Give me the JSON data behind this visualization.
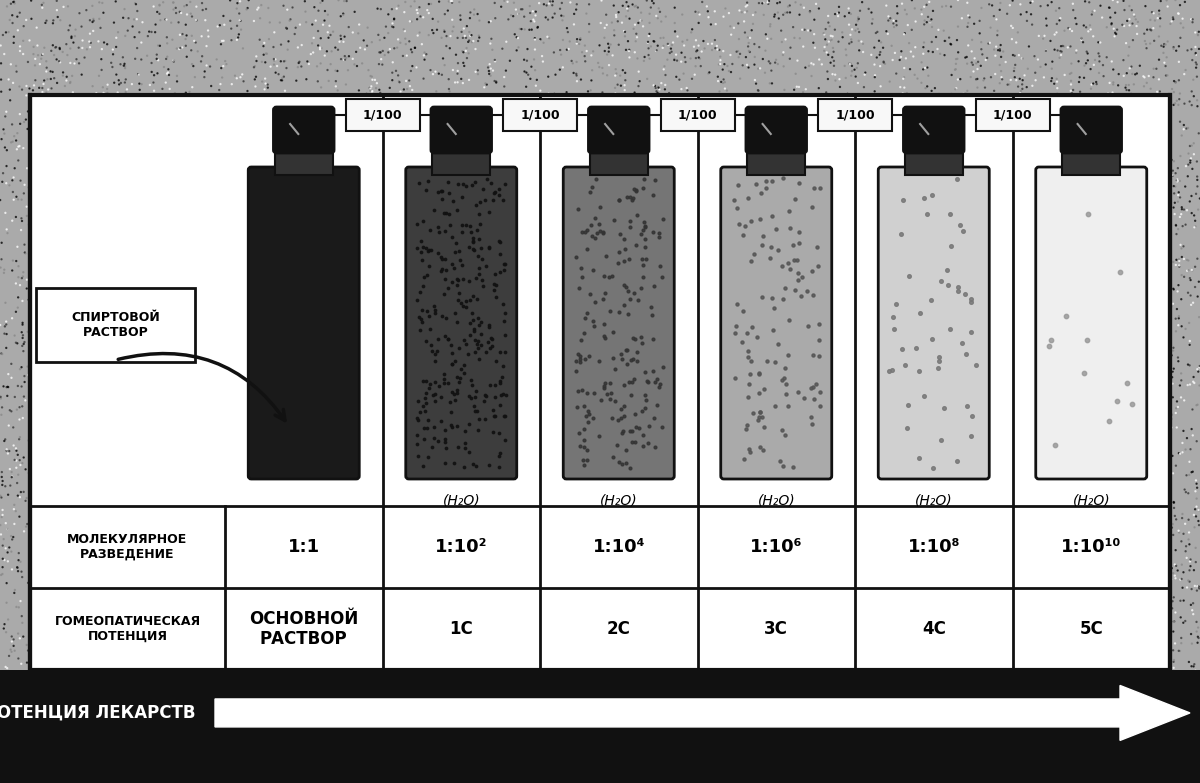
{
  "title": "ВОЗРАСТАЮЩАЯ ПОТЕНЦИЯ ЛЕКАРСТВ",
  "background_outer": "#1a1a1a",
  "background_inner": "#ffffff",
  "border_color": "#111111",
  "dilution_label": "1/100",
  "spirtvoy_label": "СПИРТОВОЙ\nРАСТВОР",
  "h2o_label": "(H₂O)",
  "row_label1": "МОЛЕКУЛЯРНОЕ\nРАЗВЕДЕНИЕ",
  "row_label2": "ГОМЕОПАТИЧЕСКАЯ\nПОТЕНЦИЯ",
  "mol_dilutions": [
    "1:1",
    "1:10²",
    "1:10⁴",
    "1:10⁶",
    "1:10⁸",
    "1:10¹⁰"
  ],
  "potencies": [
    "ОСНОВНОЙ\nРАСТВОР",
    "1С",
    "2С",
    "3С",
    "4С",
    "5С"
  ],
  "bottle_fill_colors": [
    "#1a1a1a",
    "#3d3d3d",
    "#757575",
    "#aaaaaa",
    "#d0d0d0",
    "#efefef"
  ],
  "bottle_dot_counts": [
    0,
    300,
    200,
    120,
    50,
    12
  ],
  "bottle_dot_sizes": [
    0,
    3,
    4,
    5,
    7,
    10
  ],
  "bottle_dot_colors": [
    "#000000",
    "#111111",
    "#333333",
    "#555555",
    "#777777",
    "#999999"
  ]
}
